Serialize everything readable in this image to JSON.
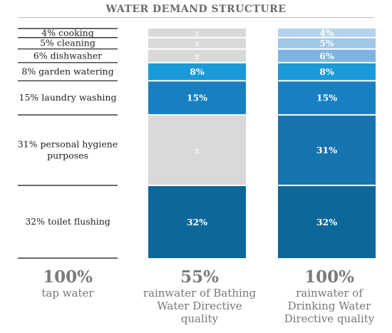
{
  "title": "WATER DEMAND STRUCTURE",
  "chart_data": {
    "type": "stacked-bar",
    "title": "WATER DEMAND STRUCTURE",
    "order_bottom_to_top": [
      "32% toilet flushing",
      "31% personal hygiene purposes",
      "15% laundry washing",
      "8% garden watering",
      "6% dishwasher",
      "5% cleaning",
      "4% cooking"
    ],
    "categories": [
      {
        "name": "cooking",
        "label": "4% cooking",
        "value": 4
      },
      {
        "name": "cleaning",
        "label": "5% cleaning",
        "value": 5
      },
      {
        "name": "dishwasher",
        "label": "6% dishwasher",
        "value": 6
      },
      {
        "name": "garden watering",
        "label": "8% garden watering",
        "value": 8
      },
      {
        "name": "laundry washing",
        "label": "15% laundry washing",
        "value": 15
      },
      {
        "name": "personal hygiene purposes",
        "label": "31% personal hygiene purposes",
        "value": 31
      },
      {
        "name": "toilet flushing",
        "label": "32% toilet flushing",
        "value": 32
      }
    ],
    "bars": [
      {
        "total": "55%",
        "caption": "rainwater of Bathing Water Directive quality",
        "segments": [
          {
            "category": "cooking",
            "text": "x",
            "color": "#d9d9d9"
          },
          {
            "category": "cleaning",
            "text": "x",
            "color": "#d9d9d9"
          },
          {
            "category": "dishwasher",
            "text": "x",
            "color": "#d9d9d9"
          },
          {
            "category": "garden watering",
            "text": "8%",
            "color": "#1a9ad9"
          },
          {
            "category": "laundry washing",
            "text": "15%",
            "color": "#1880c0"
          },
          {
            "category": "personal hygiene purposes",
            "text": "x",
            "color": "#d9d9d9"
          },
          {
            "category": "toilet flushing",
            "text": "32%",
            "color": "#0e6799"
          }
        ]
      },
      {
        "total": "100%",
        "caption": "rainwater of Drinking Water Directive quality",
        "segments": [
          {
            "category": "cooking",
            "text": "4%",
            "color": "#b4d3ee"
          },
          {
            "category": "cleaning",
            "text": "5%",
            "color": "#9fc7ea"
          },
          {
            "category": "dishwasher",
            "text": "6%",
            "color": "#7db4e3"
          },
          {
            "category": "garden watering",
            "text": "8%",
            "color": "#1a9ad9"
          },
          {
            "category": "laundry washing",
            "text": "15%",
            "color": "#1880c0"
          },
          {
            "category": "personal hygiene purposes",
            "text": "31%",
            "color": "#1674ae"
          },
          {
            "category": "toilet flushing",
            "text": "32%",
            "color": "#0e6799"
          }
        ]
      }
    ]
  },
  "footers": [
    {
      "pct": "100%",
      "label": "tap water"
    },
    {
      "pct": "55%",
      "label": "rainwater of Bathing Water Directive quality"
    },
    {
      "pct": "100%",
      "label": "rainwater of Drinking Water Directive quality"
    }
  ]
}
